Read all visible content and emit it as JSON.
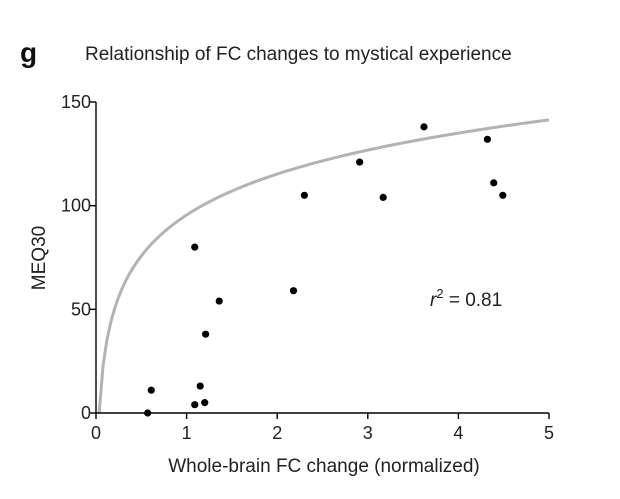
{
  "panel_label": "g",
  "chart_data": {
    "type": "scatter",
    "title": "Relationship of FC changes to mystical experience",
    "xlabel": "Whole-brain FC change (normalized)",
    "ylabel": "MEQ30",
    "xlim": [
      0,
      5
    ],
    "ylim": [
      0,
      150
    ],
    "xticks": [
      "0",
      "1",
      "2",
      "3",
      "4",
      "5"
    ],
    "yticks": [
      "0",
      "50",
      "100",
      "150"
    ],
    "points": [
      {
        "x": 0.57,
        "y": 0
      },
      {
        "x": 0.61,
        "y": 11
      },
      {
        "x": 1.09,
        "y": 4
      },
      {
        "x": 1.09,
        "y": 80
      },
      {
        "x": 1.15,
        "y": 13
      },
      {
        "x": 1.2,
        "y": 5
      },
      {
        "x": 1.21,
        "y": 38
      },
      {
        "x": 1.36,
        "y": 54
      },
      {
        "x": 2.18,
        "y": 59
      },
      {
        "x": 2.3,
        "y": 105
      },
      {
        "x": 2.91,
        "y": 121
      },
      {
        "x": 3.17,
        "y": 104
      },
      {
        "x": 3.62,
        "y": 138
      },
      {
        "x": 4.32,
        "y": 132
      },
      {
        "x": 4.39,
        "y": 111
      },
      {
        "x": 4.49,
        "y": 105
      }
    ],
    "fit": {
      "type": "logarithmic",
      "a": 28.5,
      "b": 95.5,
      "color": "#b3b3b3"
    },
    "annotation": {
      "prefix": "r",
      "superscript": "2",
      "suffix": " = 0.81"
    },
    "grid": false,
    "point_color": "#000000"
  }
}
